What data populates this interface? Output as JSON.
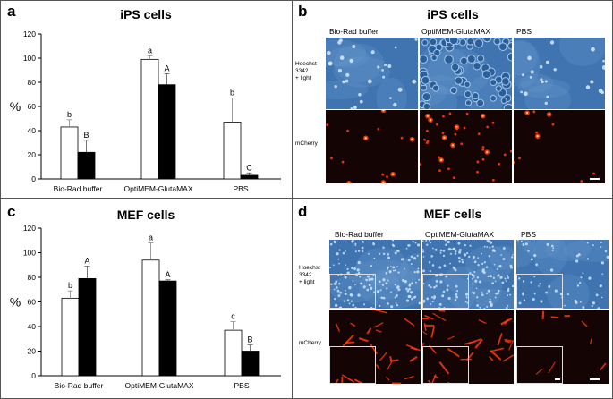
{
  "panel_a": {
    "letter": "a",
    "title": "iPS cells"
  },
  "panel_b": {
    "letter": "b",
    "title": "iPS cells",
    "column_headers": [
      "Bio-Rad buffer",
      "OptiMEM-GlutaMAX",
      "PBS"
    ],
    "row_label_1": "Hoechst\n3342\n+ light",
    "row_label_2": "mCherry"
  },
  "panel_c": {
    "letter": "c",
    "title": "MEF cells"
  },
  "panel_d": {
    "letter": "d",
    "title": "MEF cells",
    "column_headers": [
      "Bio-Rad buffer",
      "OptiMEM-GlutaMAX",
      "PBS"
    ],
    "row_label_1": "Hoechst\n3342\n+ light",
    "row_label_2": "mCherry"
  },
  "colors": {
    "bar_white_fill": "#ffffff",
    "bar_black_fill": "#000000",
    "hoechst_bg": "#3f74b0",
    "mcherry_bg": "#150404",
    "mcherry_signal": "#ff3a10"
  },
  "chart_data": [
    {
      "type": "bar",
      "panel": "a",
      "title": "iPS cells",
      "categories": [
        "Bio-Rad buffer",
        "OptiMEM-GlutaMAX",
        "PBS"
      ],
      "ylabel": "%",
      "xlabel": "",
      "ylim": [
        0,
        120
      ],
      "yticks": [
        0,
        20,
        40,
        60,
        80,
        100,
        120
      ],
      "grid": false,
      "series": [
        {
          "fill": "white",
          "values": [
            43,
            99,
            47
          ],
          "errors": [
            6,
            3,
            20
          ],
          "letters": [
            "b",
            "a",
            "b"
          ]
        },
        {
          "fill": "black",
          "values": [
            22,
            78,
            3
          ],
          "errors": [
            10,
            9,
            2
          ],
          "letters": [
            "B",
            "A",
            "C"
          ]
        }
      ]
    },
    {
      "type": "bar",
      "panel": "c",
      "title": "MEF cells",
      "categories": [
        "Bio-Rad buffer",
        "OptiMEM-GlutaMAX",
        "PBS"
      ],
      "ylabel": "%",
      "xlabel": "",
      "ylim": [
        0,
        120
      ],
      "yticks": [
        0,
        20,
        40,
        60,
        80,
        100,
        120
      ],
      "grid": false,
      "series": [
        {
          "fill": "white",
          "values": [
            63,
            94,
            37
          ],
          "errors": [
            6,
            14,
            7
          ],
          "letters": [
            "b",
            "a",
            "c"
          ]
        },
        {
          "fill": "black",
          "values": [
            79,
            77,
            20
          ],
          "errors": [
            10,
            1,
            5
          ],
          "letters": [
            "A",
            "A",
            "B"
          ]
        }
      ]
    }
  ]
}
